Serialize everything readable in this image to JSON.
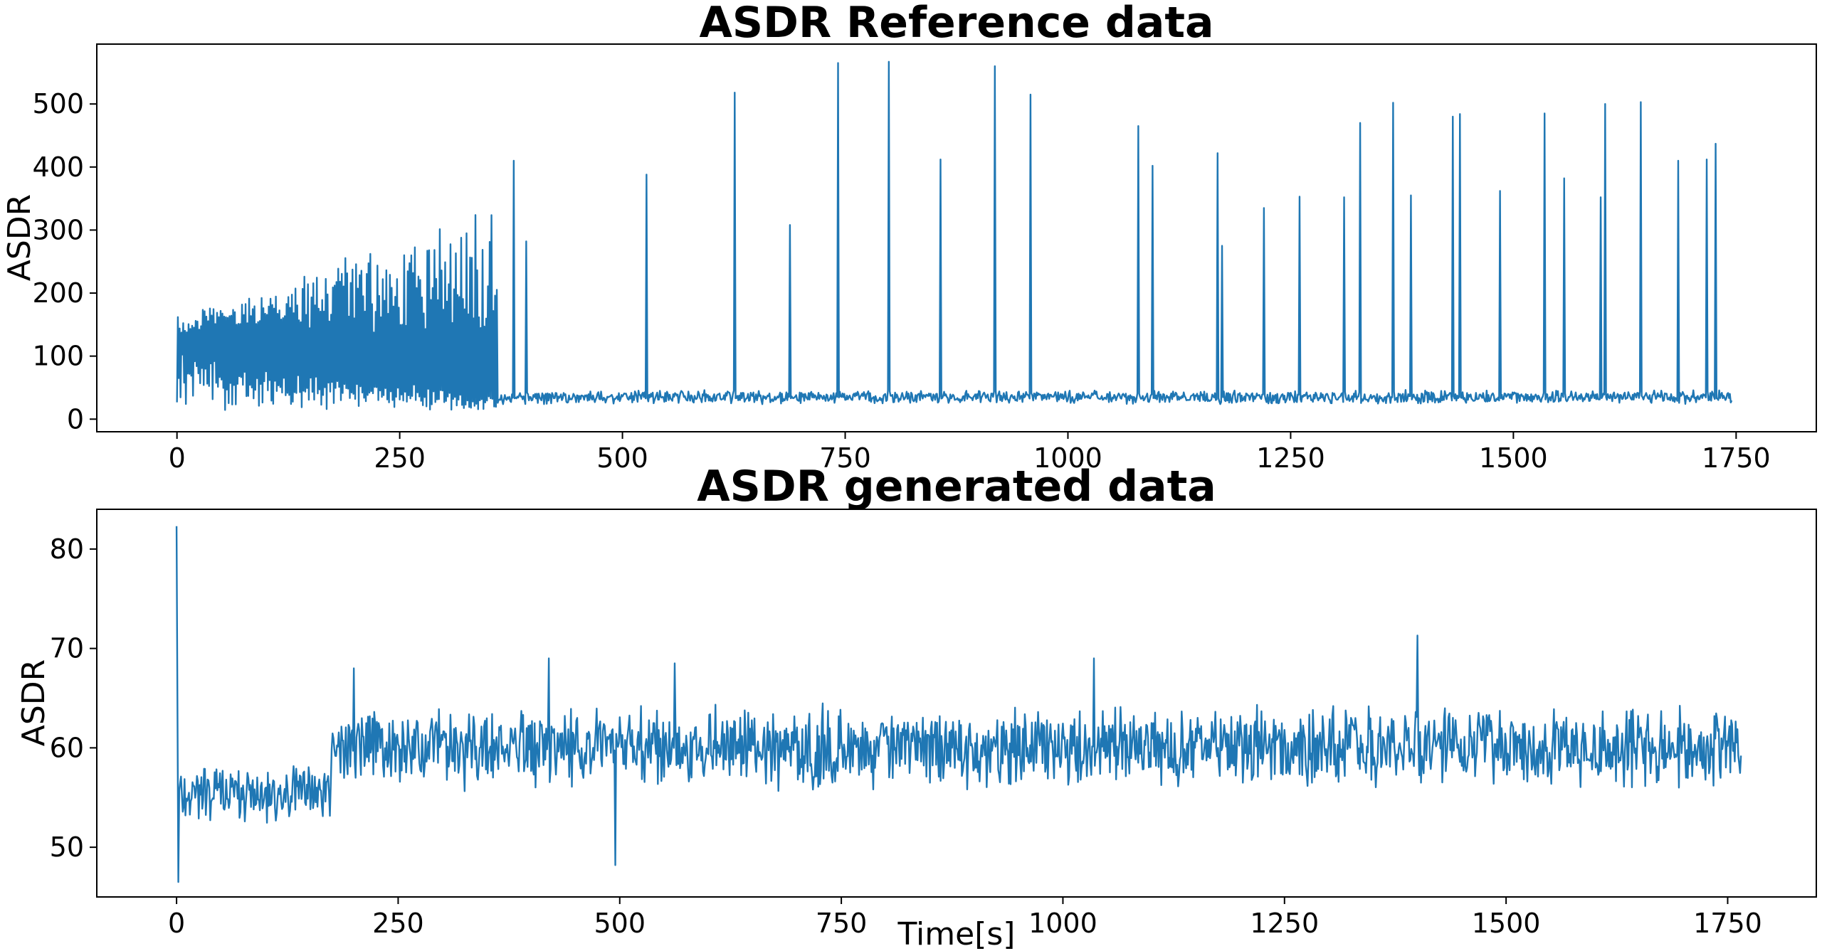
{
  "figure": {
    "background": "#ffffff",
    "line_color": "#1f77b4"
  },
  "chart_data": [
    {
      "type": "line",
      "title": "ASDR Reference data",
      "xlabel": "",
      "ylabel": "ASDR",
      "xlim": [
        -90,
        1840
      ],
      "ylim": [
        -20,
        595
      ],
      "xticks": [
        0,
        250,
        500,
        750,
        1000,
        1250,
        1500,
        1750
      ],
      "yticks": [
        0,
        100,
        200,
        300,
        400,
        500
      ],
      "grid": false,
      "color": "#1f77b4",
      "x_range": [
        0,
        1745
      ],
      "segments": [
        {
          "x": [
            0,
            360
          ],
          "pattern": "oscillation",
          "lo": 12,
          "hi": 165
        },
        {
          "x": [
            360,
            1745
          ],
          "pattern": "noise",
          "base": 35,
          "amp": 12
        },
        {
          "pattern": "spikes",
          "points": [
            [
              378,
              410
            ],
            [
              392,
              282
            ],
            [
              527,
              388
            ],
            [
              626,
              518
            ],
            [
              688,
              308
            ],
            [
              742,
              565
            ],
            [
              799,
              567
            ],
            [
              857,
              412
            ],
            [
              918,
              560
            ],
            [
              958,
              515
            ],
            [
              1079,
              465
            ],
            [
              1095,
              402
            ],
            [
              1168,
              422
            ],
            [
              1173,
              275
            ],
            [
              1220,
              335
            ],
            [
              1260,
              353
            ],
            [
              1310,
              352
            ],
            [
              1328,
              470
            ],
            [
              1365,
              502
            ],
            [
              1385,
              355
            ],
            [
              1432,
              480
            ],
            [
              1440,
              484
            ],
            [
              1485,
              362
            ],
            [
              1535,
              485
            ],
            [
              1557,
              382
            ],
            [
              1598,
              352
            ],
            [
              1603,
              500
            ],
            [
              1643,
              503
            ],
            [
              1685,
              410
            ],
            [
              1717,
              412
            ],
            [
              1727,
              437
            ]
          ]
        }
      ]
    },
    {
      "type": "line",
      "title": "ASDR generated data",
      "xlabel": "Time[s]",
      "ylabel": "ASDR",
      "xlim": [
        -90,
        1850
      ],
      "ylim": [
        45,
        84
      ],
      "xticks": [
        0,
        250,
        500,
        750,
        1000,
        1250,
        1500,
        1750
      ],
      "yticks": [
        50,
        60,
        70,
        80
      ],
      "grid": false,
      "color": "#1f77b4",
      "x_range": [
        0,
        1765
      ],
      "segments": [
        {
          "pattern": "spikes",
          "points": [
            [
              0,
              82.3
            ],
            [
              2,
              46.5
            ]
          ]
        },
        {
          "x": [
            3,
            175
          ],
          "pattern": "noise",
          "base": 55.5,
          "amp": 3.5
        },
        {
          "x": [
            175,
            1765
          ],
          "pattern": "noise",
          "base": 60,
          "amp": 4.5
        },
        {
          "pattern": "spikes",
          "points": [
            [
              200,
              68
            ],
            [
              420,
              69
            ],
            [
              495,
              48.2
            ],
            [
              562,
              68.5
            ],
            [
              1035,
              69
            ],
            [
              1400,
              71.3
            ]
          ]
        }
      ]
    }
  ]
}
